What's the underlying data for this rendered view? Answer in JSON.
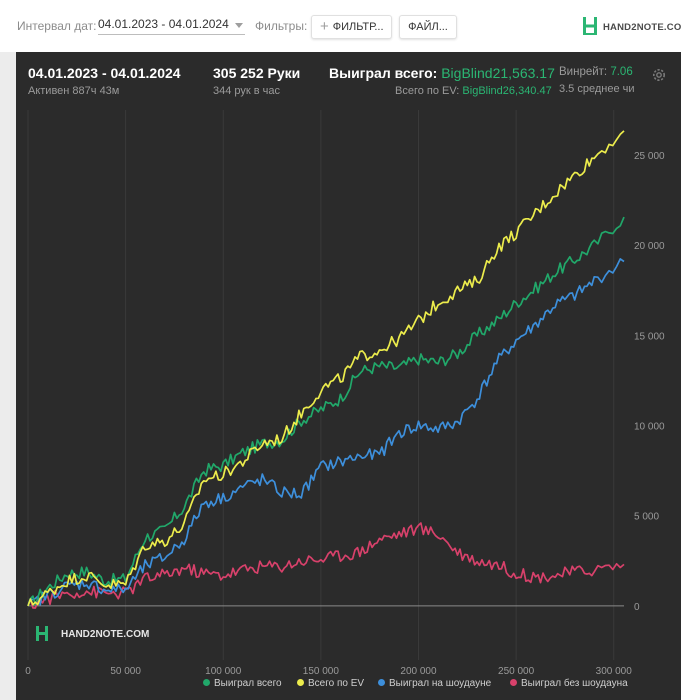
{
  "toolbar": {
    "date_interval_label": "Интервал дат:",
    "date_interval_value": "04.01.2023 - 04.01.2024",
    "filters_label": "Фильтры:",
    "filters_button": "ФИЛЬТР...",
    "files_button": "ФАЙЛ...",
    "logo_text": "HAND2NOTE.COM"
  },
  "summary": {
    "period": "04.01.2023 - 04.01.2024",
    "active": "Активен 887ч 43м",
    "hands": "305 252 Руки",
    "hands_per_hour": "344 рук в час",
    "won_total_label": "Выиграл всего:",
    "won_total_value": "BigBlind21,563.17",
    "ev_total_label": "Всего по EV:",
    "ev_total_value": "BigBlind26,340.47",
    "winrate_label": "Винрейт:",
    "winrate_value": "7.06",
    "winrate_sub": "3.5 среднее чи"
  },
  "watermark": "HAND2NOTE.COM",
  "colors": {
    "panel_bg": "#2b2b2b",
    "green_accent": "#2bb673",
    "series_won": "#21a86a",
    "series_ev": "#ecec4c",
    "series_showdown": "#3d8fdb",
    "series_nonshowdown": "#d8416b"
  },
  "icons": {
    "settings": "gear-icon",
    "logo": "hand2note-logo-icon"
  },
  "chart_data": {
    "type": "line",
    "xlim": [
      0,
      305252
    ],
    "ylim": [
      -3000,
      27500
    ],
    "x_ticks": [
      0,
      50000,
      100000,
      150000,
      200000,
      250000,
      300000
    ],
    "x_tick_labels": [
      "0",
      "50 000",
      "100 000",
      "150 000",
      "200 000",
      "250 000",
      "300 000"
    ],
    "y_ticks": [
      0,
      5000,
      10000,
      15000,
      20000,
      25000
    ],
    "y_tick_labels": [
      "0",
      "5 000",
      "10 000",
      "15 000",
      "20 000",
      "25 000"
    ],
    "grid": "vertical",
    "legend": "bottom",
    "x": [
      0,
      10000,
      20000,
      30000,
      40000,
      50000,
      60000,
      70000,
      80000,
      90000,
      100000,
      110000,
      120000,
      130000,
      140000,
      150000,
      160000,
      170000,
      180000,
      190000,
      200000,
      210000,
      220000,
      230000,
      240000,
      250000,
      260000,
      270000,
      280000,
      290000,
      305252
    ],
    "series": [
      {
        "name": "Выиграл всего",
        "values": [
          0,
          1000,
          1800,
          1900,
          1400,
          1500,
          3800,
          4200,
          5500,
          7500,
          7800,
          8500,
          9000,
          9200,
          10300,
          10900,
          11500,
          13000,
          13300,
          13200,
          13700,
          13500,
          14000,
          15000,
          15800,
          16800,
          17600,
          18500,
          19200,
          20000,
          21563
        ]
      },
      {
        "name": "Всего по EV",
        "values": [
          0,
          700,
          1400,
          1700,
          1200,
          1200,
          3400,
          3600,
          4500,
          7000,
          7300,
          8000,
          9000,
          9300,
          10700,
          12000,
          12600,
          13800,
          14200,
          14800,
          15800,
          16800,
          17500,
          18000,
          19800,
          20700,
          21800,
          22900,
          23900,
          24900,
          26340
        ]
      },
      {
        "name": "Выиграл на шоудауне",
        "values": [
          0,
          600,
          1100,
          1300,
          900,
          900,
          2200,
          2700,
          3700,
          5700,
          6000,
          6600,
          7000,
          6300,
          6200,
          7700,
          8000,
          8300,
          8400,
          9600,
          10000,
          9800,
          10200,
          11500,
          13500,
          14700,
          15600,
          16700,
          17200,
          18000,
          19100
        ]
      },
      {
        "name": "Выиграл без шоудауна",
        "values": [
          0,
          400,
          700,
          800,
          700,
          700,
          1500,
          1700,
          2100,
          1800,
          1700,
          2000,
          2200,
          2200,
          2500,
          2600,
          2800,
          3000,
          3700,
          4000,
          4300,
          4000,
          3000,
          2500,
          2300,
          1800,
          1600,
          1700,
          1900,
          2000,
          2300
        ]
      }
    ]
  },
  "legend_items": [
    "Выиграл всего",
    "Всего по EV",
    "Выиграл на шоудауне",
    "Выиграл без шоудауна"
  ]
}
